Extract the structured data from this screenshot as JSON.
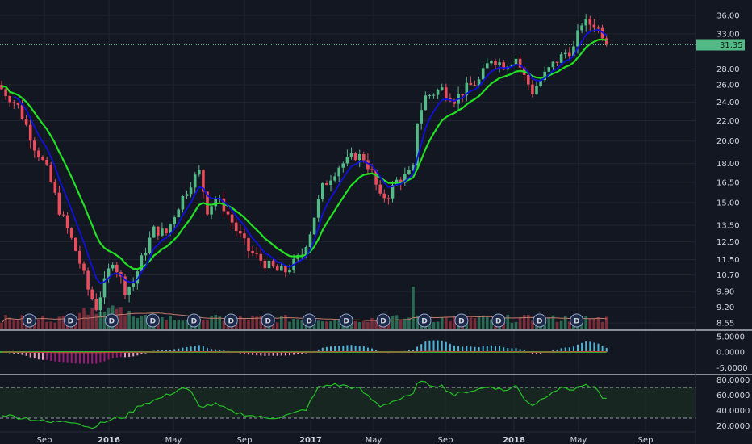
{
  "chart_data": {
    "type": "candlestick",
    "title": "",
    "interval": "W",
    "colors": {
      "background": "#131722",
      "up": "#53b987",
      "down": "#eb4d5c",
      "grid": "#1f2430",
      "ema_fast": "#1010e0",
      "ema_slow": "#22e022",
      "last_price": "#53b987",
      "volume_ma": "#c47a6a",
      "rsi": "#22c022",
      "rsi_band": "#1e3322",
      "macd_pos": "#4fb3d9",
      "macd_neg_a": "#e99dbb",
      "macd_neg_b": "#9c1c7a",
      "macd_line": "#2ab02a",
      "macd_signal": "#d04040"
    },
    "price_axis": {
      "ticks": [
        "36.00",
        "33.00",
        "28.00",
        "26.00",
        "24.00",
        "22.00",
        "20.00",
        "18.00",
        "16.50",
        "15.00",
        "13.50",
        "12.50",
        "11.50",
        "10.70",
        "9.90",
        "9.20",
        "8.55"
      ],
      "last_price": "31.35",
      "scale": "log",
      "range": [
        8.3,
        37.5
      ]
    },
    "time_axis": {
      "labels": [
        "Sep",
        "2016",
        "May",
        "Sep",
        "2017",
        "May",
        "Sep",
        "2018",
        "May",
        "Sep"
      ],
      "bold": [
        "2016",
        "2017",
        "2018"
      ]
    },
    "candle_anchors": {
      "note_x": "week index",
      "points": [
        [
          0,
          25.5
        ],
        [
          4,
          23.5
        ],
        [
          8,
          19.5
        ],
        [
          11,
          17.5
        ],
        [
          14,
          14.5
        ],
        [
          18,
          12.0
        ],
        [
          21,
          10.0
        ],
        [
          23,
          9.2
        ],
        [
          25,
          10.3
        ],
        [
          27,
          11.5
        ],
        [
          30,
          10.0
        ],
        [
          32,
          10.3
        ],
        [
          34,
          11.5
        ],
        [
          37,
          13.2
        ],
        [
          40,
          13.0
        ],
        [
          43,
          14.8
        ],
        [
          46,
          16.5
        ],
        [
          48,
          17.3
        ],
        [
          50,
          14.5
        ],
        [
          52,
          15.3
        ],
        [
          54,
          14.7
        ],
        [
          57,
          13.2
        ],
        [
          60,
          12.0
        ],
        [
          64,
          11.3
        ],
        [
          67,
          10.9
        ],
        [
          69,
          10.9
        ],
        [
          71,
          11.3
        ],
        [
          73,
          11.8
        ],
        [
          75,
          13.1
        ],
        [
          78,
          16.1
        ],
        [
          82,
          17.8
        ],
        [
          86,
          18.7
        ],
        [
          88,
          18.5
        ],
        [
          90,
          17.2
        ],
        [
          92,
          15.3
        ],
        [
          94,
          15.6
        ],
        [
          96,
          16.6
        ],
        [
          98,
          16.9
        ],
        [
          100,
          17.5
        ],
        [
          101,
          22.0
        ],
        [
          103,
          24.6
        ],
        [
          107,
          25.5
        ],
        [
          110,
          24.3
        ],
        [
          113,
          25.6
        ],
        [
          116,
          26.5
        ],
        [
          119,
          29.5
        ],
        [
          122,
          28.5
        ],
        [
          125,
          29.5
        ],
        [
          127,
          27.0
        ],
        [
          129,
          25.2
        ],
        [
          131,
          26.6
        ],
        [
          134,
          28.6
        ],
        [
          137,
          30.2
        ],
        [
          139,
          30.8
        ],
        [
          141,
          34.8
        ],
        [
          144,
          34.5
        ],
        [
          146,
          33.0
        ],
        [
          147,
          31.35
        ]
      ]
    },
    "volume": {
      "label_marker": "D",
      "dividend_weeks": [
        4,
        14,
        24,
        34,
        44,
        53,
        62,
        72,
        81,
        90,
        100,
        109,
        118,
        128,
        137
      ]
    },
    "macd": {
      "ticks": [
        "5.0000",
        "0.0000",
        "-5.0000"
      ],
      "range": [
        -7,
        6.5
      ]
    },
    "rsi": {
      "ticks": [
        "80.0000",
        "60.0000",
        "40.0000",
        "20.0000"
      ],
      "bands": [
        70,
        30
      ],
      "range": [
        12,
        85
      ],
      "anchors": [
        [
          0,
          35
        ],
        [
          3,
          32
        ],
        [
          6,
          30
        ],
        [
          9,
          27
        ],
        [
          12,
          24
        ],
        [
          15,
          27
        ],
        [
          18,
          25
        ],
        [
          21,
          18
        ],
        [
          23,
          20
        ],
        [
          25,
          25
        ],
        [
          28,
          30
        ],
        [
          30,
          32
        ],
        [
          34,
          48
        ],
        [
          38,
          55
        ],
        [
          41,
          62
        ],
        [
          44,
          70
        ],
        [
          46,
          64
        ],
        [
          48,
          45
        ],
        [
          52,
          48
        ],
        [
          56,
          38
        ],
        [
          60,
          34
        ],
        [
          64,
          30
        ],
        [
          68,
          32
        ],
        [
          71,
          36
        ],
        [
          74,
          42
        ],
        [
          77,
          70
        ],
        [
          80,
          74
        ],
        [
          84,
          72
        ],
        [
          87,
          68
        ],
        [
          90,
          54
        ],
        [
          92,
          46
        ],
        [
          95,
          52
        ],
        [
          98,
          57
        ],
        [
          100,
          60
        ],
        [
          101,
          78
        ],
        [
          104,
          74
        ],
        [
          107,
          72
        ],
        [
          110,
          60
        ],
        [
          113,
          65
        ],
        [
          116,
          68
        ],
        [
          119,
          72
        ],
        [
          122,
          66
        ],
        [
          125,
          72
        ],
        [
          127,
          56
        ],
        [
          129,
          47
        ],
        [
          131,
          54
        ],
        [
          134,
          66
        ],
        [
          137,
          70
        ],
        [
          139,
          67
        ],
        [
          141,
          73
        ],
        [
          144,
          69
        ],
        [
          146,
          58
        ],
        [
          147,
          55
        ]
      ]
    }
  }
}
